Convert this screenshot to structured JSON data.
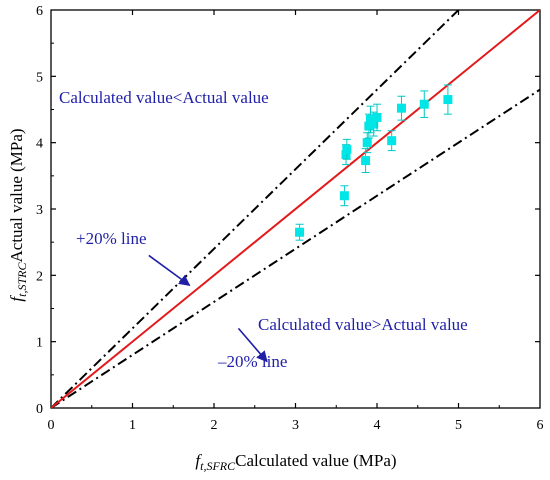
{
  "chart_data": {
    "type": "scatter",
    "title": "",
    "xlabel": {
      "symbol": "f",
      "subscript": "t,SFRC",
      "text": "Calculated value (MPa)"
    },
    "ylabel": {
      "symbol": "f",
      "subscript": "t,STRC",
      "text": "Actual value (MPa)"
    },
    "xlim": [
      0,
      6
    ],
    "ylim": [
      0,
      6
    ],
    "xticks": [
      "0",
      "1",
      "2",
      "3",
      "4",
      "5",
      "6"
    ],
    "yticks": [
      "0",
      "1",
      "2",
      "3",
      "4",
      "5",
      "6"
    ],
    "grid": false,
    "colors": {
      "points": "#00e5e5",
      "error_bars": "#00c8c8",
      "equal_line": "#e31a1c",
      "bound_lines": "#000000",
      "annotations": "#1f1fa8",
      "arrows": "#1f1fa8"
    },
    "points": [
      {
        "x": 3.05,
        "y": 2.65,
        "err": 0.12
      },
      {
        "x": 3.6,
        "y": 3.2,
        "err": 0.15
      },
      {
        "x": 3.62,
        "y": 3.82,
        "err": 0.15
      },
      {
        "x": 3.63,
        "y": 3.9,
        "err": 0.15
      },
      {
        "x": 3.86,
        "y": 3.73,
        "err": 0.18
      },
      {
        "x": 3.88,
        "y": 4.0,
        "err": 0.15
      },
      {
        "x": 3.9,
        "y": 4.25,
        "err": 0.18
      },
      {
        "x": 3.92,
        "y": 4.35,
        "err": 0.2
      },
      {
        "x": 3.96,
        "y": 4.28,
        "err": 0.18
      },
      {
        "x": 4.0,
        "y": 4.38,
        "err": 0.2
      },
      {
        "x": 4.18,
        "y": 4.03,
        "err": 0.15
      },
      {
        "x": 4.3,
        "y": 4.52,
        "err": 0.18
      },
      {
        "x": 4.58,
        "y": 4.58,
        "err": 0.2
      },
      {
        "x": 4.87,
        "y": 4.65,
        "err": 0.22
      }
    ],
    "lines": [
      {
        "name": "equal",
        "slope": 1.0,
        "style": "solid"
      },
      {
        "name": "+20% line",
        "slope": 1.2,
        "style": "dashdot"
      },
      {
        "name": "-20% line",
        "slope": 0.8,
        "style": "dashdot"
      }
    ],
    "annotations": {
      "upper_region": "Calculated value<Actual value",
      "lower_region": "Calculated value>Actual value",
      "plus_line": "+20% line",
      "minus_line": "–20% line"
    },
    "arrows": [
      {
        "from": [
          1.2,
          2.3
        ],
        "to": [
          1.7,
          1.85
        ]
      },
      {
        "from": [
          2.3,
          1.2
        ],
        "to": [
          2.65,
          0.7
        ]
      }
    ]
  }
}
